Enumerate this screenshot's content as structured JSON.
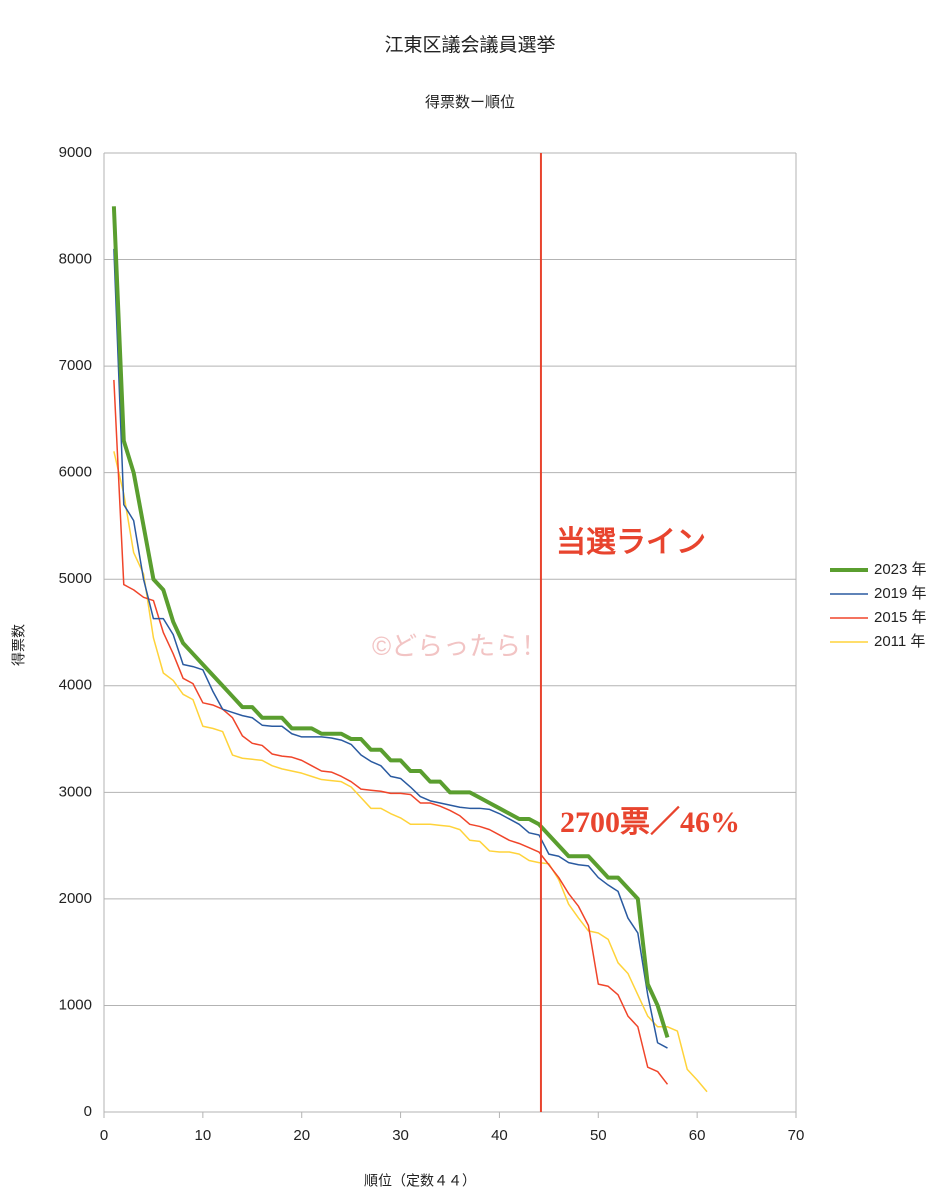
{
  "chart_data": {
    "type": "line",
    "title": "江東区議会議員選挙",
    "subtitle": "得票数ー順位",
    "x_label": "順位（定数４４）",
    "y_label": "得票数",
    "x": [
      1,
      2,
      3,
      4,
      5,
      6,
      7,
      8,
      9,
      10,
      11,
      12,
      13,
      14,
      15,
      16,
      17,
      18,
      19,
      20,
      21,
      22,
      23,
      24,
      25,
      26,
      27,
      28,
      29,
      30,
      31,
      32,
      33,
      34,
      35,
      36,
      37,
      38,
      39,
      40,
      41,
      42,
      43,
      44,
      45,
      46,
      47,
      48,
      49,
      50,
      51,
      52,
      53,
      54,
      55,
      56,
      57,
      58,
      59,
      60,
      61
    ],
    "series": [
      {
        "name": "2023 年",
        "color": "#5a9e2f",
        "width": 4,
        "values": [
          8500,
          6300,
          6000,
          5500,
          5000,
          4900,
          4600,
          4400,
          4300,
          4200,
          4100,
          4000,
          3900,
          3800,
          3800,
          3700,
          3700,
          3700,
          3600,
          3600,
          3600,
          3550,
          3550,
          3550,
          3500,
          3500,
          3400,
          3400,
          3300,
          3300,
          3200,
          3200,
          3100,
          3100,
          3000,
          3000,
          3000,
          2950,
          2900,
          2850,
          2800,
          2750,
          2750,
          2700,
          2600,
          2500,
          2400,
          2400,
          2400,
          2300,
          2200,
          2200,
          2100,
          2000,
          1200,
          1000,
          700,
          null,
          null,
          null,
          null
        ]
      },
      {
        "name": "2019 年",
        "color": "#2a5aa0",
        "width": 1.5,
        "values": [
          8100,
          5700,
          5550,
          5000,
          4630,
          4630,
          4480,
          4200,
          4180,
          4150,
          3950,
          3780,
          3750,
          3720,
          3700,
          3630,
          3620,
          3620,
          3550,
          3520,
          3520,
          3520,
          3510,
          3490,
          3450,
          3350,
          3290,
          3250,
          3150,
          3130,
          3050,
          2960,
          2920,
          2900,
          2880,
          2860,
          2850,
          2850,
          2840,
          2800,
          2750,
          2700,
          2620,
          2600,
          2420,
          2400,
          2340,
          2320,
          2310,
          2200,
          2130,
          2070,
          1820,
          1680,
          1100,
          650,
          600,
          null,
          null,
          null,
          null
        ]
      },
      {
        "name": "2015 年",
        "color": "#f0452a",
        "width": 1.5,
        "values": [
          6870,
          4950,
          4900,
          4830,
          4800,
          4500,
          4300,
          4070,
          4020,
          3840,
          3820,
          3780,
          3700,
          3530,
          3460,
          3440,
          3360,
          3340,
          3330,
          3300,
          3250,
          3200,
          3190,
          3150,
          3100,
          3030,
          3020,
          3010,
          2990,
          2990,
          2980,
          2900,
          2900,
          2870,
          2830,
          2780,
          2700,
          2680,
          2650,
          2600,
          2550,
          2520,
          2480,
          2440,
          2320,
          2200,
          2050,
          1930,
          1750,
          1200,
          1180,
          1100,
          900,
          800,
          420,
          380,
          260,
          null,
          null,
          null,
          null
        ]
      },
      {
        "name": "2011 年",
        "color": "#ffd33a",
        "width": 1.5,
        "values": [
          6200,
          5800,
          5250,
          5050,
          4450,
          4120,
          4050,
          3920,
          3870,
          3620,
          3600,
          3570,
          3350,
          3320,
          3310,
          3300,
          3250,
          3220,
          3200,
          3180,
          3150,
          3120,
          3110,
          3100,
          3050,
          2950,
          2850,
          2850,
          2800,
          2760,
          2700,
          2700,
          2700,
          2690,
          2680,
          2650,
          2550,
          2540,
          2450,
          2440,
          2440,
          2420,
          2360,
          2340,
          2330,
          2180,
          1950,
          1820,
          1700,
          1680,
          1620,
          1400,
          1300,
          1100,
          900,
          800,
          800,
          760,
          400,
          300,
          190
        ]
      }
    ],
    "xlim": [
      0,
      70
    ],
    "xticks": [
      0,
      10,
      20,
      30,
      40,
      50,
      60,
      70
    ],
    "ylim": [
      0,
      9000
    ],
    "yticks": [
      0,
      1000,
      2000,
      3000,
      4000,
      5000,
      6000,
      7000,
      8000,
      9000
    ],
    "grid": true,
    "legend": "right",
    "vline": {
      "x": 44.2,
      "color": "#e8442e"
    },
    "annotations": {
      "line_label": "当選ライン",
      "threshold_label": "2700票／46%",
      "watermark": "©どらったら！"
    }
  }
}
